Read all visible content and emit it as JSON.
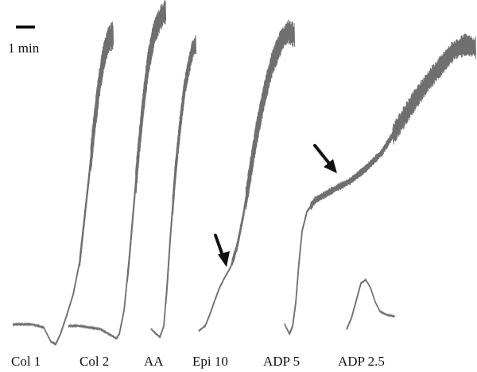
{
  "chart_data": {
    "type": "line",
    "title": "",
    "xlabel": "",
    "ylabel": "",
    "scale_bar": {
      "label": "1 min"
    },
    "trace_color": "#6f6f6f",
    "arrow_color": "#111111",
    "series": [
      {
        "name": "Col 1"
      },
      {
        "name": "Col 2"
      },
      {
        "name": "AA"
      },
      {
        "name": "Epi 10"
      },
      {
        "name": "ADP 5"
      },
      {
        "name": "ADP 2.5"
      }
    ],
    "annotations": [
      {
        "type": "arrow",
        "target": "Epi 10"
      },
      {
        "type": "arrow",
        "target": "ADP 5"
      }
    ]
  }
}
